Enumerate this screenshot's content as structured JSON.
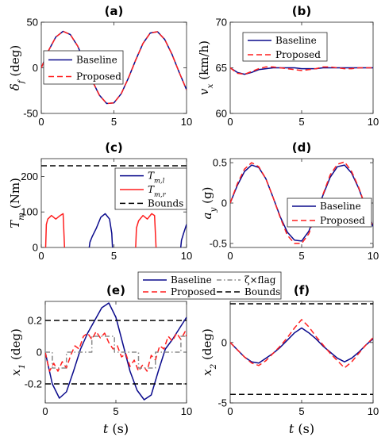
{
  "colors": {
    "baseline": "#0a0a8c",
    "proposed": "#ff1f1f",
    "flag": "#8c8c8c",
    "bounds": "#000000",
    "tml": "#0a0a8c",
    "tmr": "#ff1f1f"
  },
  "chart_data": [
    {
      "id": "a",
      "type": "line",
      "title": "(a)",
      "ylabel": "δ_f (deg)",
      "xlabel": "",
      "xlim": [
        0,
        10
      ],
      "ylim": [
        -50,
        50
      ],
      "xticks": [
        "0",
        "5",
        "10"
      ],
      "yticks": [
        "-50",
        "0",
        "50"
      ],
      "legend": {
        "position": "bottom-left",
        "entries": [
          "Baseline",
          "Proposed"
        ]
      },
      "series": [
        {
          "name": "Baseline",
          "x": [
            0,
            0.5,
            1,
            1.5,
            2,
            2.5,
            3,
            3.5,
            4,
            4.5,
            5,
            5.5,
            6,
            6.5,
            7,
            7.5,
            8,
            8.5,
            9,
            9.5,
            10
          ],
          "y": [
            0,
            18.8,
            33.7,
            40,
            36.4,
            23.9,
            5.6,
            -13.8,
            -30,
            -39.1,
            -38.4,
            -28.4,
            -11.1,
            8.4,
            26.7,
            38.2,
            39.6,
            31.1,
            14.8,
            -5.1,
            -24.1
          ]
        },
        {
          "name": "Proposed",
          "x": [
            0,
            0.5,
            1,
            1.5,
            2,
            2.5,
            3,
            3.5,
            4,
            4.5,
            5,
            5.5,
            6,
            6.5,
            7,
            7.5,
            8,
            8.5,
            9,
            9.5,
            10
          ],
          "y": [
            0,
            18.8,
            33.7,
            40,
            36.4,
            23.9,
            5.6,
            -13.8,
            -30,
            -39.1,
            -38.4,
            -28.4,
            -11.1,
            8.4,
            26.7,
            38.2,
            39.6,
            31.1,
            14.8,
            -5.1,
            -24.1
          ]
        }
      ]
    },
    {
      "id": "b",
      "type": "line",
      "title": "(b)",
      "ylabel": "v_x (km/h)",
      "xlabel": "",
      "xlim": [
        0,
        10
      ],
      "ylim": [
        60,
        70
      ],
      "xticks": [
        "0",
        "5",
        "10"
      ],
      "yticks": [
        "60",
        "65",
        "70"
      ],
      "legend": {
        "position": "top-left",
        "entries": [
          "Baseline",
          "Proposed"
        ]
      },
      "series": [
        {
          "name": "Baseline",
          "x": [
            0,
            0.5,
            1,
            1.5,
            2,
            2.5,
            3,
            3.5,
            4,
            4.5,
            5,
            5.5,
            6,
            6.5,
            7,
            7.5,
            8,
            8.5,
            9,
            9.5,
            10
          ],
          "y": [
            65,
            64.5,
            64.3,
            64.5,
            64.8,
            64.9,
            65,
            65,
            65,
            65,
            64.9,
            64.9,
            64.9,
            65,
            65,
            65,
            65,
            65,
            65,
            65,
            65
          ]
        },
        {
          "name": "Proposed",
          "x": [
            0,
            0.5,
            1,
            1.5,
            2,
            2.5,
            3,
            3.5,
            4,
            4.5,
            5,
            5.5,
            6,
            6.5,
            7,
            7.5,
            8,
            8.5,
            9,
            9.5,
            10
          ],
          "y": [
            65,
            64.4,
            64.3,
            64.6,
            64.9,
            65.1,
            65.1,
            65,
            64.9,
            64.8,
            64.7,
            64.8,
            64.9,
            65.1,
            65.1,
            65,
            64.9,
            64.9,
            65,
            65,
            65
          ]
        }
      ]
    },
    {
      "id": "c",
      "type": "line",
      "title": "(c)",
      "ylabel": "T_m (Nm)",
      "xlabel": "",
      "xlim": [
        0,
        10
      ],
      "ylim": [
        0,
        250
      ],
      "xticks": [
        "0",
        "5",
        "10"
      ],
      "yticks": [
        "0",
        "100",
        "200"
      ],
      "legend": {
        "position": "middle-right",
        "entries": [
          "T_m,l",
          "T_m,r",
          "Bounds"
        ]
      },
      "series": [
        {
          "name": "T_m,l",
          "segments": [
            {
              "x": [
                3.3,
                3.35,
                3.5,
                3.8,
                4.1,
                4.4,
                4.7,
                4.85,
                4.9
              ],
              "y": [
                0,
                15,
                30,
                55,
                85,
                95,
                80,
                40,
                0
              ]
            },
            {
              "x": [
                9.6,
                9.65,
                9.8,
                10
              ],
              "y": [
                0,
                20,
                40,
                65
              ]
            }
          ]
        },
        {
          "name": "T_m,r",
          "segments": [
            {
              "x": [
                0.3,
                0.35,
                0.45,
                0.7,
                1.0,
                1.3,
                1.5,
                1.6
              ],
              "y": [
                0,
                65,
                80,
                90,
                80,
                90,
                95,
                0
              ]
            },
            {
              "x": [
                6.5,
                6.55,
                6.7,
                7.0,
                7.3,
                7.6,
                7.8,
                7.9
              ],
              "y": [
                0,
                55,
                75,
                90,
                80,
                95,
                90,
                0
              ]
            }
          ]
        },
        {
          "name": "Bounds",
          "x": [
            0,
            10
          ],
          "y": [
            230,
            230
          ]
        }
      ]
    },
    {
      "id": "d",
      "type": "line",
      "title": "(d)",
      "ylabel": "a_y (g)",
      "xlabel": "",
      "xlim": [
        0,
        10
      ],
      "ylim": [
        -0.55,
        0.55
      ],
      "xticks": [
        "0",
        "5",
        "10"
      ],
      "yticks": [
        "-0.5",
        "0",
        "0.5"
      ],
      "legend": {
        "position": "middle-right",
        "entries": [
          "Baseline",
          "Proposed"
        ]
      },
      "series": [
        {
          "name": "Baseline",
          "x": [
            0,
            0.5,
            1,
            1.5,
            2,
            2.5,
            3,
            3.5,
            4,
            4.5,
            5,
            5.5,
            6,
            6.5,
            7,
            7.5,
            8,
            8.5,
            9,
            9.5,
            10
          ],
          "y": [
            0,
            0.22,
            0.39,
            0.47,
            0.44,
            0.3,
            0.07,
            -0.17,
            -0.36,
            -0.46,
            -0.47,
            -0.35,
            -0.13,
            0.1,
            0.32,
            0.45,
            0.47,
            0.37,
            0.18,
            -0.06,
            -0.29
          ]
        },
        {
          "name": "Proposed",
          "x": [
            0,
            0.5,
            1,
            1.5,
            2,
            2.5,
            3,
            3.5,
            4,
            4.5,
            5,
            5.5,
            6,
            6.5,
            7,
            7.5,
            8,
            8.5,
            9,
            9.5,
            10
          ],
          "y": [
            0,
            0.24,
            0.42,
            0.5,
            0.45,
            0.3,
            0.07,
            -0.18,
            -0.4,
            -0.5,
            -0.5,
            -0.38,
            -0.14,
            0.11,
            0.35,
            0.48,
            0.51,
            0.39,
            0.19,
            -0.06,
            -0.3
          ]
        }
      ]
    },
    {
      "id": "e",
      "type": "line",
      "title": "(e)",
      "ylabel": "x_1 (deg)",
      "xlabel": "t (s)",
      "xlim": [
        0,
        10
      ],
      "ylim": [
        -0.32,
        0.32
      ],
      "xticks": [
        "0",
        "5",
        "10"
      ],
      "yticks": [
        "-0.2",
        "0",
        "0.2"
      ],
      "legend": {
        "position": "top",
        "entries": [
          "Baseline",
          "ζ×flag",
          "Proposed",
          "Bounds"
        ]
      },
      "series": [
        {
          "name": "Baseline",
          "x": [
            0,
            0.5,
            1,
            1.5,
            2,
            2.5,
            3,
            3.5,
            4,
            4.5,
            5,
            5.5,
            6,
            6.5,
            7,
            7.5,
            8,
            8.5,
            9,
            9.5,
            10
          ],
          "y": [
            0,
            -0.2,
            -0.29,
            -0.25,
            -0.12,
            0.02,
            0.12,
            0.2,
            0.28,
            0.31,
            0.22,
            0.05,
            -0.12,
            -0.24,
            -0.3,
            -0.27,
            -0.12,
            0.02,
            0.08,
            0.15,
            0.22
          ]
        },
        {
          "name": "Proposed",
          "x": [
            0,
            0.3,
            0.6,
            0.9,
            1.2,
            1.5,
            1.8,
            2.1,
            2.4,
            2.7,
            3,
            3.3,
            3.6,
            3.9,
            4.2,
            4.5,
            4.8,
            5.1,
            5.4,
            5.7,
            6,
            6.3,
            6.6,
            6.9,
            7.2,
            7.5,
            7.8,
            8.1,
            8.4,
            8.7,
            9,
            9.3,
            9.6,
            9.9,
            10
          ],
          "y": [
            0,
            -0.12,
            -0.07,
            -0.12,
            -0.06,
            -0.1,
            -0.02,
            0.04,
            0.02,
            0.1,
            0.12,
            0.08,
            0.13,
            0.09,
            0.12,
            0.06,
            0.02,
            0.04,
            -0.03,
            -0.01,
            -0.09,
            -0.05,
            -0.12,
            -0.08,
            -0.12,
            -0.02,
            -0.05,
            0.04,
            0.02,
            0.1,
            0.07,
            0.12,
            0.08,
            0.13,
            0.1
          ]
        },
        {
          "name": "ζ×flag",
          "x": [
            0,
            0.5,
            0.5,
            1.5,
            1.5,
            3.3,
            3.3,
            4.9,
            4.9,
            6.6,
            6.6,
            7.8,
            7.8,
            9.6,
            9.6,
            10
          ],
          "y": [
            0,
            0,
            -0.1,
            -0.1,
            0,
            0,
            0.1,
            0.1,
            0,
            0,
            -0.1,
            -0.1,
            0,
            0,
            0.1,
            0.1
          ]
        },
        {
          "name": "Bounds",
          "segments": [
            {
              "x": [
                0,
                10
              ],
              "y": [
                0.2,
                0.2
              ]
            },
            {
              "x": [
                0,
                10
              ],
              "y": [
                -0.2,
                -0.2
              ]
            }
          ]
        }
      ]
    },
    {
      "id": "f",
      "type": "line",
      "title": "(f)",
      "ylabel": "x_2 (deg)",
      "xlabel": "t (s)",
      "xlim": [
        0,
        10
      ],
      "ylim": [
        -5,
        3.4
      ],
      "xticks": [
        "0",
        "5",
        "10"
      ],
      "yticks": [
        "-5",
        "0"
      ],
      "legend": {
        "position": "none",
        "entries": []
      },
      "series": [
        {
          "name": "Baseline",
          "x": [
            0,
            0.5,
            1,
            1.5,
            2,
            2.5,
            3,
            3.5,
            4,
            4.5,
            5,
            5.5,
            6,
            6.5,
            7,
            7.5,
            8,
            8.5,
            9,
            9.5,
            10
          ],
          "y": [
            0,
            -0.6,
            -1.2,
            -1.6,
            -1.7,
            -1.3,
            -0.9,
            -0.4,
            0.2,
            0.8,
            1.2,
            0.8,
            0.3,
            -0.3,
            -0.8,
            -1.3,
            -1.6,
            -1.3,
            -0.8,
            -0.2,
            0.3
          ]
        },
        {
          "name": "Proposed",
          "x": [
            0,
            0.5,
            1,
            1.5,
            2,
            2.5,
            3,
            3.5,
            4,
            4.5,
            5,
            5.5,
            6,
            6.5,
            7,
            7.5,
            8,
            8.5,
            9,
            9.5,
            10
          ],
          "y": [
            0,
            -0.6,
            -1.2,
            -1.7,
            -1.9,
            -1.5,
            -0.9,
            -0.3,
            0.4,
            1.2,
            1.9,
            1.3,
            0.5,
            -0.2,
            -0.9,
            -1.5,
            -2.1,
            -1.6,
            -0.9,
            -0.2,
            0.4
          ]
        },
        {
          "name": "Bounds",
          "segments": [
            {
              "x": [
                0,
                10
              ],
              "y": [
                3.2,
                3.2
              ]
            },
            {
              "x": [
                0,
                10
              ],
              "y": [
                -4.3,
                -4.3
              ]
            }
          ]
        }
      ]
    }
  ]
}
